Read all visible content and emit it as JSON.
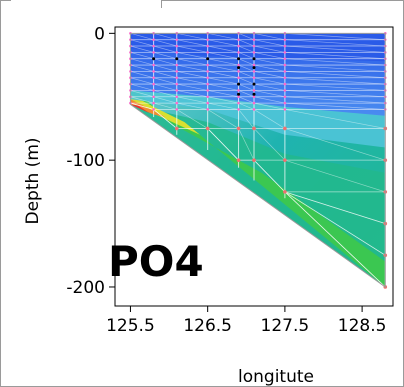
{
  "chart_data": {
    "type": "heatmap",
    "title": "",
    "parameter_label": "PO4",
    "xlabel": "longitute",
    "ylabel": "Depth (m)",
    "xlim": [
      125.3,
      128.9
    ],
    "ylim": [
      -215,
      5
    ],
    "x_ticks": [
      125.5,
      126.5,
      127.5,
      128.5
    ],
    "x_tick_labels": [
      "125.5",
      "126.5",
      "127.5",
      "128.5"
    ],
    "y_ticks": [
      0,
      -100,
      -200
    ],
    "y_tick_labels": [
      "0",
      "-100",
      "-200"
    ],
    "section_outline": [
      [
        125.5,
        0
      ],
      [
        128.8,
        0
      ],
      [
        128.8,
        -200
      ],
      [
        125.5,
        -56
      ]
    ],
    "colors": {
      "surface": "#2a5be8",
      "upper": "#4a8cf0",
      "mid": "#1fb3b0",
      "deep": "#22b98c",
      "green": "#3ec94a",
      "yellow": "#d8e030",
      "orange": "#f08a30",
      "red": "#e83030",
      "edge": "#9a9a9a"
    },
    "stations": [
      {
        "x": 125.5,
        "max_depth": -56
      },
      {
        "x": 125.8,
        "max_depth": -66
      },
      {
        "x": 126.1,
        "max_depth": -80
      },
      {
        "x": 126.5,
        "max_depth": -92
      },
      {
        "x": 126.9,
        "max_depth": -106
      },
      {
        "x": 127.1,
        "max_depth": -116
      },
      {
        "x": 127.5,
        "max_depth": -130
      },
      {
        "x": 128.8,
        "max_depth": -200
      }
    ],
    "sample_depths": [
      0,
      -5,
      -10,
      -15,
      -20,
      -25,
      -30,
      -35,
      -40,
      -45,
      -50,
      -55,
      -60,
      -75,
      -100,
      -125,
      -150,
      -175,
      -200
    ],
    "black_sample_points": [
      {
        "x": 126.1,
        "y": -20
      },
      {
        "x": 126.5,
        "y": -20
      },
      {
        "x": 126.9,
        "y": -20
      },
      {
        "x": 126.9,
        "y": -27
      },
      {
        "x": 126.9,
        "y": -40
      },
      {
        "x": 126.9,
        "y": -48
      },
      {
        "x": 127.1,
        "y": -20
      },
      {
        "x": 127.1,
        "y": -27
      },
      {
        "x": 127.1,
        "y": -40
      },
      {
        "x": 127.1,
        "y": -48
      },
      {
        "x": 125.8,
        "y": -20
      }
    ],
    "grid": false,
    "legend": "none"
  }
}
